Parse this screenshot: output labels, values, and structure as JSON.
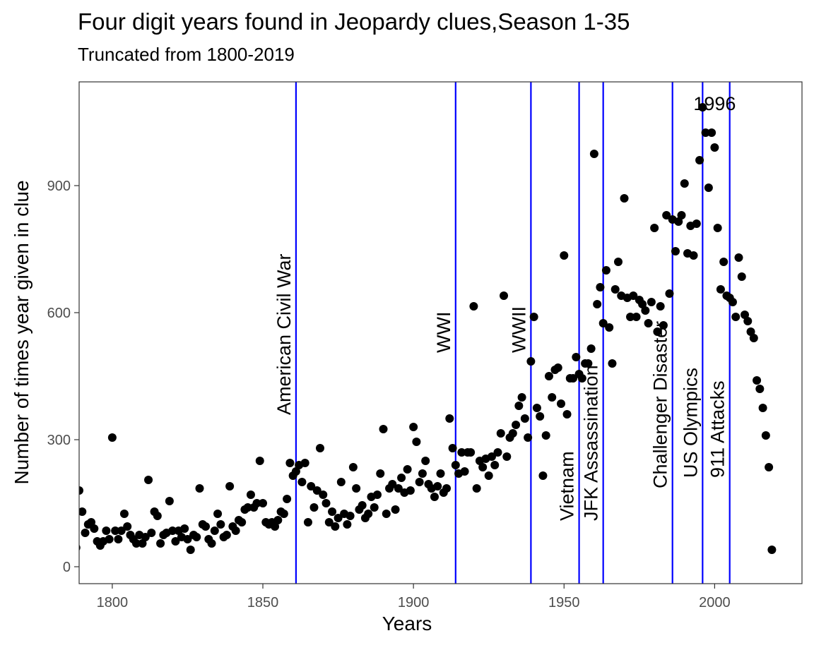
{
  "chart_data": {
    "type": "scatter",
    "title": "Four digit years found in Jeopardy clues,Season 1-35",
    "subtitle": "Truncated from 1800-2019",
    "xlabel": "Years",
    "ylabel": "Number of times year given in clue",
    "xlim": [
      1789,
      2029
    ],
    "ylim": [
      -40,
      1145
    ],
    "xticks": [
      1800,
      1850,
      1900,
      1950,
      2000
    ],
    "yticks": [
      0,
      300,
      600,
      900
    ],
    "grid": false,
    "colors": {
      "points": "#000000",
      "event_lines": "#0000ff",
      "panel_border": "#333333",
      "tick_text": "#4d4d4d"
    },
    "events": [
      {
        "year": 1861,
        "label": "American Civil War"
      },
      {
        "year": 1914,
        "label": "WWI"
      },
      {
        "year": 1939,
        "label": "WWII"
      },
      {
        "year": 1955,
        "label": "Vietnam"
      },
      {
        "year": 1963,
        "label": "JFK Assassination"
      },
      {
        "year": 1986,
        "label": "Challenger Disaster"
      },
      {
        "year": 1996,
        "label": "US Olympics"
      },
      {
        "year": 2005,
        "label": "911 Attacks"
      }
    ],
    "annotation": {
      "x": 2000,
      "y": 1095,
      "label": "1996"
    },
    "points": [
      [
        1788,
        45
      ],
      [
        1789,
        180
      ],
      [
        1790,
        130
      ],
      [
        1791,
        80
      ],
      [
        1792,
        100
      ],
      [
        1793,
        105
      ],
      [
        1794,
        90
      ],
      [
        1795,
        60
      ],
      [
        1796,
        50
      ],
      [
        1797,
        60
      ],
      [
        1798,
        85
      ],
      [
        1799,
        65
      ],
      [
        1800,
        305
      ],
      [
        1801,
        85
      ],
      [
        1802,
        65
      ],
      [
        1803,
        85
      ],
      [
        1804,
        125
      ],
      [
        1805,
        95
      ],
      [
        1806,
        75
      ],
      [
        1807,
        65
      ],
      [
        1808,
        55
      ],
      [
        1809,
        75
      ],
      [
        1810,
        55
      ],
      [
        1811,
        70
      ],
      [
        1812,
        205
      ],
      [
        1813,
        80
      ],
      [
        1814,
        130
      ],
      [
        1815,
        120
      ],
      [
        1816,
        55
      ],
      [
        1817,
        75
      ],
      [
        1818,
        80
      ],
      [
        1819,
        155
      ],
      [
        1820,
        85
      ],
      [
        1821,
        60
      ],
      [
        1822,
        85
      ],
      [
        1823,
        70
      ],
      [
        1824,
        90
      ],
      [
        1825,
        65
      ],
      [
        1826,
        40
      ],
      [
        1827,
        75
      ],
      [
        1828,
        70
      ],
      [
        1829,
        185
      ],
      [
        1830,
        100
      ],
      [
        1831,
        95
      ],
      [
        1832,
        65
      ],
      [
        1833,
        55
      ],
      [
        1834,
        85
      ],
      [
        1835,
        125
      ],
      [
        1836,
        100
      ],
      [
        1837,
        70
      ],
      [
        1838,
        75
      ],
      [
        1839,
        190
      ],
      [
        1840,
        95
      ],
      [
        1841,
        85
      ],
      [
        1842,
        110
      ],
      [
        1843,
        105
      ],
      [
        1844,
        135
      ],
      [
        1845,
        140
      ],
      [
        1846,
        170
      ],
      [
        1847,
        140
      ],
      [
        1848,
        150
      ],
      [
        1849,
        250
      ],
      [
        1850,
        150
      ],
      [
        1851,
        105
      ],
      [
        1852,
        100
      ],
      [
        1853,
        105
      ],
      [
        1854,
        95
      ],
      [
        1855,
        110
      ],
      [
        1856,
        130
      ],
      [
        1857,
        125
      ],
      [
        1858,
        160
      ],
      [
        1859,
        245
      ],
      [
        1860,
        215
      ],
      [
        1861,
        225
      ],
      [
        1862,
        240
      ],
      [
        1863,
        200
      ],
      [
        1864,
        245
      ],
      [
        1865,
        105
      ],
      [
        1866,
        190
      ],
      [
        1867,
        140
      ],
      [
        1868,
        180
      ],
      [
        1869,
        280
      ],
      [
        1870,
        170
      ],
      [
        1871,
        150
      ],
      [
        1872,
        105
      ],
      [
        1873,
        130
      ],
      [
        1874,
        95
      ],
      [
        1875,
        115
      ],
      [
        1876,
        200
      ],
      [
        1877,
        125
      ],
      [
        1878,
        100
      ],
      [
        1879,
        120
      ],
      [
        1880,
        235
      ],
      [
        1881,
        185
      ],
      [
        1882,
        135
      ],
      [
        1883,
        145
      ],
      [
        1884,
        115
      ],
      [
        1885,
        125
      ],
      [
        1886,
        165
      ],
      [
        1887,
        140
      ],
      [
        1888,
        170
      ],
      [
        1889,
        220
      ],
      [
        1890,
        325
      ],
      [
        1891,
        125
      ],
      [
        1892,
        185
      ],
      [
        1893,
        195
      ],
      [
        1894,
        135
      ],
      [
        1895,
        185
      ],
      [
        1896,
        210
      ],
      [
        1897,
        175
      ],
      [
        1898,
        230
      ],
      [
        1899,
        180
      ],
      [
        1900,
        330
      ],
      [
        1901,
        295
      ],
      [
        1902,
        200
      ],
      [
        1903,
        220
      ],
      [
        1904,
        250
      ],
      [
        1905,
        195
      ],
      [
        1906,
        185
      ],
      [
        1907,
        165
      ],
      [
        1908,
        190
      ],
      [
        1909,
        220
      ],
      [
        1910,
        175
      ],
      [
        1911,
        185
      ],
      [
        1912,
        350
      ],
      [
        1913,
        280
      ],
      [
        1914,
        240
      ],
      [
        1915,
        220
      ],
      [
        1916,
        270
      ],
      [
        1917,
        225
      ],
      [
        1918,
        270
      ],
      [
        1919,
        270
      ],
      [
        1920,
        615
      ],
      [
        1921,
        185
      ],
      [
        1922,
        250
      ],
      [
        1923,
        235
      ],
      [
        1924,
        255
      ],
      [
        1925,
        215
      ],
      [
        1926,
        260
      ],
      [
        1927,
        240
      ],
      [
        1928,
        270
      ],
      [
        1929,
        315
      ],
      [
        1930,
        640
      ],
      [
        1931,
        260
      ],
      [
        1932,
        305
      ],
      [
        1933,
        315
      ],
      [
        1934,
        335
      ],
      [
        1935,
        380
      ],
      [
        1936,
        400
      ],
      [
        1937,
        350
      ],
      [
        1938,
        305
      ],
      [
        1939,
        485
      ],
      [
        1940,
        590
      ],
      [
        1941,
        375
      ],
      [
        1942,
        355
      ],
      [
        1943,
        215
      ],
      [
        1944,
        310
      ],
      [
        1945,
        450
      ],
      [
        1946,
        400
      ],
      [
        1947,
        465
      ],
      [
        1948,
        470
      ],
      [
        1949,
        385
      ],
      [
        1950,
        735
      ],
      [
        1951,
        360
      ],
      [
        1952,
        445
      ],
      [
        1953,
        445
      ],
      [
        1954,
        495
      ],
      [
        1955,
        455
      ],
      [
        1956,
        445
      ],
      [
        1957,
        480
      ],
      [
        1958,
        480
      ],
      [
        1959,
        515
      ],
      [
        1960,
        975
      ],
      [
        1961,
        620
      ],
      [
        1962,
        660
      ],
      [
        1963,
        575
      ],
      [
        1964,
        700
      ],
      [
        1965,
        565
      ],
      [
        1966,
        480
      ],
      [
        1967,
        655
      ],
      [
        1968,
        720
      ],
      [
        1969,
        640
      ],
      [
        1970,
        870
      ],
      [
        1971,
        635
      ],
      [
        1972,
        590
      ],
      [
        1973,
        640
      ],
      [
        1974,
        590
      ],
      [
        1975,
        630
      ],
      [
        1976,
        620
      ],
      [
        1977,
        605
      ],
      [
        1978,
        575
      ],
      [
        1979,
        625
      ],
      [
        1980,
        800
      ],
      [
        1981,
        555
      ],
      [
        1982,
        615
      ],
      [
        1983,
        570
      ],
      [
        1984,
        830
      ],
      [
        1985,
        645
      ],
      [
        1986,
        820
      ],
      [
        1987,
        745
      ],
      [
        1988,
        815
      ],
      [
        1989,
        830
      ],
      [
        1990,
        905
      ],
      [
        1991,
        740
      ],
      [
        1992,
        805
      ],
      [
        1993,
        735
      ],
      [
        1994,
        810
      ],
      [
        1995,
        960
      ],
      [
        1996,
        1085
      ],
      [
        1997,
        1025
      ],
      [
        1998,
        895
      ],
      [
        1999,
        1025
      ],
      [
        2000,
        990
      ],
      [
        2001,
        800
      ],
      [
        2002,
        655
      ],
      [
        2003,
        720
      ],
      [
        2004,
        640
      ],
      [
        2005,
        635
      ],
      [
        2006,
        625
      ],
      [
        2007,
        590
      ],
      [
        2008,
        730
      ],
      [
        2009,
        685
      ],
      [
        2010,
        595
      ],
      [
        2011,
        580
      ],
      [
        2012,
        555
      ],
      [
        2013,
        540
      ],
      [
        2014,
        440
      ],
      [
        2015,
        420
      ],
      [
        2016,
        375
      ],
      [
        2017,
        310
      ],
      [
        2018,
        235
      ],
      [
        2019,
        40
      ]
    ]
  }
}
